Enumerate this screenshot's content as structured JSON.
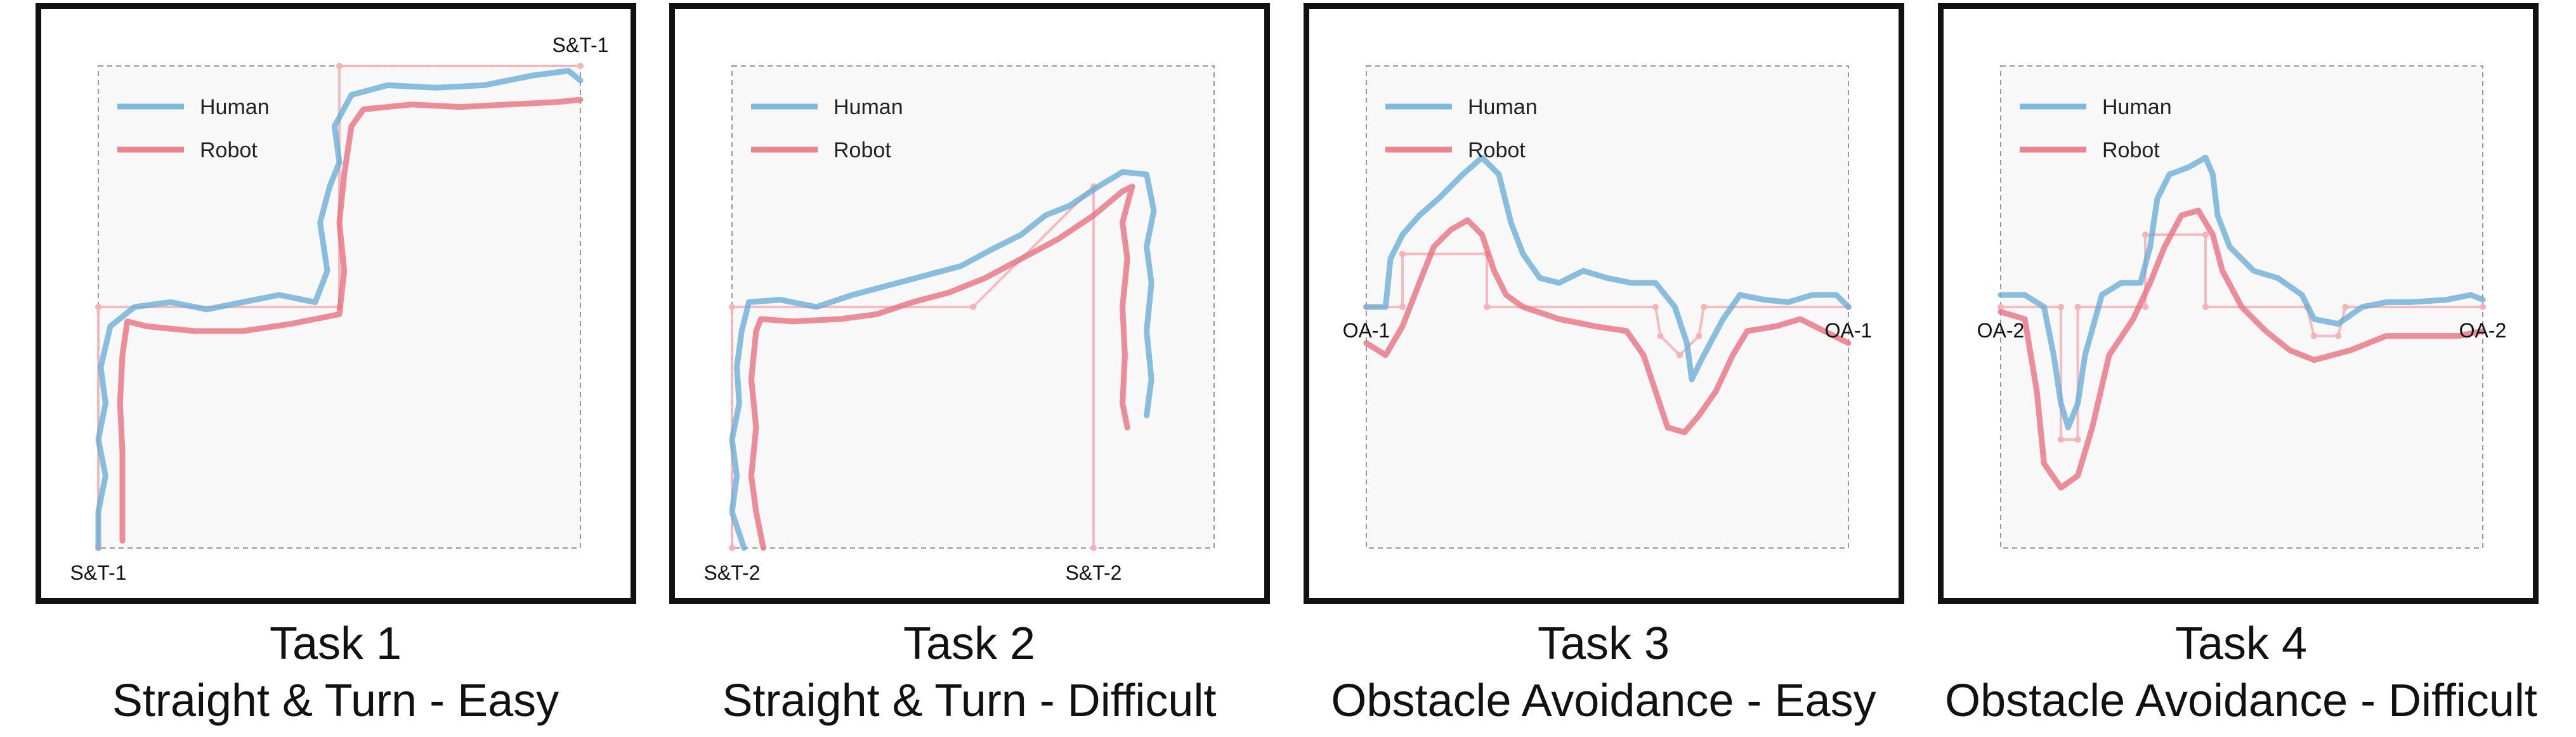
{
  "colors": {
    "human": "#6aaed6",
    "robot": "#e8707f",
    "reference": "#f5b3b8",
    "axes_box": "#999999",
    "plot_bg": "#f8f8f8"
  },
  "chart_data": [
    {
      "type": "line",
      "title": "Task 1",
      "subtitle": "Straight & Turn - Easy",
      "legend": [
        "Human",
        "Robot"
      ],
      "legend_position": "top-left",
      "start_label": "S&T-1",
      "end_label": "S&T-1",
      "series": [
        {
          "name": "Human",
          "points": [
            [
              -1.0,
              -1.0
            ],
            [
              -1.0,
              -0.85
            ],
            [
              -0.97,
              -0.7
            ],
            [
              -1.0,
              -0.55
            ],
            [
              -0.97,
              -0.4
            ],
            [
              -0.99,
              -0.25
            ],
            [
              -0.95,
              -0.08
            ],
            [
              -0.85,
              0.0
            ],
            [
              -0.7,
              0.02
            ],
            [
              -0.55,
              -0.01
            ],
            [
              -0.4,
              0.02
            ],
            [
              -0.25,
              0.05
            ],
            [
              -0.1,
              0.02
            ],
            [
              -0.05,
              0.15
            ],
            [
              -0.08,
              0.35
            ],
            [
              -0.04,
              0.5
            ],
            [
              0.0,
              0.6
            ],
            [
              -0.02,
              0.75
            ],
            [
              0.05,
              0.88
            ],
            [
              0.2,
              0.92
            ],
            [
              0.4,
              0.91
            ],
            [
              0.6,
              0.92
            ],
            [
              0.8,
              0.96
            ],
            [
              0.95,
              0.98
            ],
            [
              1.0,
              0.94
            ]
          ]
        },
        {
          "name": "Robot",
          "points": [
            [
              -0.9,
              -0.97
            ],
            [
              -0.9,
              -0.8
            ],
            [
              -0.9,
              -0.6
            ],
            [
              -0.91,
              -0.4
            ],
            [
              -0.9,
              -0.2
            ],
            [
              -0.88,
              -0.06
            ],
            [
              -0.8,
              -0.08
            ],
            [
              -0.6,
              -0.1
            ],
            [
              -0.4,
              -0.1
            ],
            [
              -0.2,
              -0.07
            ],
            [
              0.0,
              -0.03
            ],
            [
              0.02,
              0.15
            ],
            [
              0.0,
              0.35
            ],
            [
              0.02,
              0.55
            ],
            [
              0.05,
              0.75
            ],
            [
              0.1,
              0.82
            ],
            [
              0.3,
              0.84
            ],
            [
              0.5,
              0.83
            ],
            [
              0.7,
              0.84
            ],
            [
              0.9,
              0.85
            ],
            [
              1.0,
              0.86
            ]
          ]
        },
        {
          "name": "",
          "points": [
            [
              -1.0,
              -1.0
            ],
            [
              -1.0,
              0.0
            ],
            [
              0.0,
              0.0
            ],
            [
              0.0,
              1.0
            ],
            [
              1.0,
              1.0
            ]
          ]
        }
      ]
    },
    {
      "type": "line",
      "title": "Task 2",
      "subtitle": "Straight & Turn - Difficult",
      "legend": [
        "Human",
        "Robot"
      ],
      "legend_position": "top-left",
      "start_label": "S&T-2",
      "end_label": "S&T-2",
      "series": [
        {
          "name": "Human",
          "points": [
            [
              -0.95,
              -1.0
            ],
            [
              -1.0,
              -0.85
            ],
            [
              -0.98,
              -0.7
            ],
            [
              -1.0,
              -0.55
            ],
            [
              -0.97,
              -0.4
            ],
            [
              -0.98,
              -0.25
            ],
            [
              -0.96,
              -0.1
            ],
            [
              -0.93,
              0.02
            ],
            [
              -0.8,
              0.03
            ],
            [
              -0.65,
              0.0
            ],
            [
              -0.5,
              0.05
            ],
            [
              -0.35,
              0.09
            ],
            [
              -0.2,
              0.13
            ],
            [
              -0.05,
              0.17
            ],
            [
              0.08,
              0.24
            ],
            [
              0.2,
              0.3
            ],
            [
              0.3,
              0.38
            ],
            [
              0.4,
              0.42
            ],
            [
              0.52,
              0.5
            ],
            [
              0.62,
              0.56
            ],
            [
              0.72,
              0.55
            ],
            [
              0.75,
              0.4
            ],
            [
              0.72,
              0.25
            ],
            [
              0.74,
              0.1
            ],
            [
              0.72,
              -0.1
            ],
            [
              0.74,
              -0.3
            ],
            [
              0.72,
              -0.45
            ]
          ]
        },
        {
          "name": "Robot",
          "points": [
            [
              -0.87,
              -1.0
            ],
            [
              -0.9,
              -0.85
            ],
            [
              -0.92,
              -0.7
            ],
            [
              -0.9,
              -0.5
            ],
            [
              -0.92,
              -0.3
            ],
            [
              -0.9,
              -0.1
            ],
            [
              -0.88,
              -0.05
            ],
            [
              -0.75,
              -0.06
            ],
            [
              -0.55,
              -0.05
            ],
            [
              -0.4,
              -0.03
            ],
            [
              -0.25,
              0.02
            ],
            [
              -0.1,
              0.06
            ],
            [
              0.05,
              0.12
            ],
            [
              0.2,
              0.2
            ],
            [
              0.35,
              0.28
            ],
            [
              0.5,
              0.38
            ],
            [
              0.62,
              0.48
            ],
            [
              0.66,
              0.5
            ],
            [
              0.62,
              0.35
            ],
            [
              0.64,
              0.2
            ],
            [
              0.62,
              0.0
            ],
            [
              0.63,
              -0.2
            ],
            [
              0.62,
              -0.4
            ],
            [
              0.64,
              -0.5
            ]
          ]
        },
        {
          "name": "",
          "points": [
            [
              -1.0,
              -1.0
            ],
            [
              -1.0,
              0.0
            ],
            [
              0.0,
              0.0
            ],
            [
              0.5,
              0.5
            ],
            [
              0.5,
              -1.0
            ]
          ]
        }
      ]
    },
    {
      "type": "line",
      "title": "Task 3",
      "subtitle": "Obstacle Avoidance - Easy",
      "legend": [
        "Human",
        "Robot"
      ],
      "legend_position": "top-left",
      "start_label": "OA-1",
      "end_label": "OA-1",
      "series": [
        {
          "name": "Human",
          "points": [
            [
              -1.0,
              0.0
            ],
            [
              -0.92,
              0.0
            ],
            [
              -0.9,
              0.2
            ],
            [
              -0.85,
              0.3
            ],
            [
              -0.78,
              0.38
            ],
            [
              -0.7,
              0.45
            ],
            [
              -0.6,
              0.55
            ],
            [
              -0.52,
              0.62
            ],
            [
              -0.45,
              0.55
            ],
            [
              -0.4,
              0.35
            ],
            [
              -0.35,
              0.22
            ],
            [
              -0.28,
              0.12
            ],
            [
              -0.2,
              0.1
            ],
            [
              -0.1,
              0.15
            ],
            [
              0.0,
              0.12
            ],
            [
              0.1,
              0.1
            ],
            [
              0.2,
              0.1
            ],
            [
              0.28,
              0.0
            ],
            [
              0.33,
              -0.15
            ],
            [
              0.35,
              -0.3
            ],
            [
              0.4,
              -0.2
            ],
            [
              0.48,
              -0.05
            ],
            [
              0.55,
              0.05
            ],
            [
              0.65,
              0.03
            ],
            [
              0.75,
              0.02
            ],
            [
              0.85,
              0.05
            ],
            [
              0.95,
              0.05
            ],
            [
              1.0,
              0.0
            ]
          ]
        },
        {
          "name": "Robot",
          "points": [
            [
              -1.0,
              -0.15
            ],
            [
              -0.92,
              -0.2
            ],
            [
              -0.85,
              -0.08
            ],
            [
              -0.78,
              0.1
            ],
            [
              -0.72,
              0.25
            ],
            [
              -0.65,
              0.32
            ],
            [
              -0.58,
              0.36
            ],
            [
              -0.52,
              0.3
            ],
            [
              -0.47,
              0.15
            ],
            [
              -0.42,
              0.05
            ],
            [
              -0.35,
              0.0
            ],
            [
              -0.2,
              -0.05
            ],
            [
              -0.05,
              -0.08
            ],
            [
              0.08,
              -0.1
            ],
            [
              0.15,
              -0.2
            ],
            [
              0.2,
              -0.35
            ],
            [
              0.25,
              -0.5
            ],
            [
              0.32,
              -0.52
            ],
            [
              0.38,
              -0.45
            ],
            [
              0.45,
              -0.35
            ],
            [
              0.52,
              -0.2
            ],
            [
              0.58,
              -0.1
            ],
            [
              0.7,
              -0.08
            ],
            [
              0.8,
              -0.05
            ],
            [
              0.9,
              -0.1
            ],
            [
              1.0,
              -0.15
            ]
          ]
        },
        {
          "name": "",
          "points": [
            [
              -1.0,
              0.0
            ],
            [
              -0.85,
              0.0
            ],
            [
              -0.85,
              0.22
            ],
            [
              -0.5,
              0.22
            ],
            [
              -0.5,
              0.0
            ],
            [
              0.2,
              0.0
            ],
            [
              0.22,
              -0.12
            ],
            [
              0.3,
              -0.2
            ],
            [
              0.38,
              -0.12
            ],
            [
              0.4,
              0.0
            ],
            [
              1.0,
              0.0
            ]
          ]
        }
      ]
    },
    {
      "type": "line",
      "title": "Task 4",
      "subtitle": "Obstacle Avoidance - Difficult",
      "legend": [
        "Human",
        "Robot"
      ],
      "legend_position": "top-left",
      "start_label": "OA-2",
      "end_label": "OA-2",
      "series": [
        {
          "name": "Human",
          "points": [
            [
              -1.0,
              0.05
            ],
            [
              -0.9,
              0.05
            ],
            [
              -0.82,
              0.0
            ],
            [
              -0.78,
              -0.2
            ],
            [
              -0.75,
              -0.4
            ],
            [
              -0.72,
              -0.5
            ],
            [
              -0.68,
              -0.4
            ],
            [
              -0.65,
              -0.2
            ],
            [
              -0.58,
              0.05
            ],
            [
              -0.5,
              0.1
            ],
            [
              -0.42,
              0.1
            ],
            [
              -0.38,
              0.25
            ],
            [
              -0.35,
              0.45
            ],
            [
              -0.3,
              0.55
            ],
            [
              -0.22,
              0.58
            ],
            [
              -0.15,
              0.62
            ],
            [
              -0.12,
              0.55
            ],
            [
              -0.1,
              0.38
            ],
            [
              -0.05,
              0.25
            ],
            [
              0.05,
              0.15
            ],
            [
              0.15,
              0.12
            ],
            [
              0.25,
              0.05
            ],
            [
              0.3,
              -0.05
            ],
            [
              0.4,
              -0.07
            ],
            [
              0.5,
              0.0
            ],
            [
              0.6,
              0.02
            ],
            [
              0.7,
              0.02
            ],
            [
              0.85,
              0.03
            ],
            [
              0.95,
              0.05
            ],
            [
              1.0,
              0.03
            ]
          ]
        },
        {
          "name": "Robot",
          "points": [
            [
              -1.0,
              -0.02
            ],
            [
              -0.9,
              -0.05
            ],
            [
              -0.85,
              -0.35
            ],
            [
              -0.82,
              -0.65
            ],
            [
              -0.75,
              -0.75
            ],
            [
              -0.68,
              -0.7
            ],
            [
              -0.62,
              -0.5
            ],
            [
              -0.55,
              -0.2
            ],
            [
              -0.45,
              -0.05
            ],
            [
              -0.38,
              0.1
            ],
            [
              -0.32,
              0.25
            ],
            [
              -0.25,
              0.38
            ],
            [
              -0.18,
              0.4
            ],
            [
              -0.12,
              0.3
            ],
            [
              -0.08,
              0.15
            ],
            [
              0.0,
              0.0
            ],
            [
              0.1,
              -0.1
            ],
            [
              0.2,
              -0.18
            ],
            [
              0.3,
              -0.22
            ],
            [
              0.45,
              -0.18
            ],
            [
              0.6,
              -0.12
            ],
            [
              0.75,
              -0.12
            ],
            [
              0.9,
              -0.12
            ],
            [
              1.0,
              -0.1
            ]
          ]
        },
        {
          "name": "",
          "points": [
            [
              -1.0,
              0.0
            ],
            [
              -0.75,
              0.0
            ],
            [
              -0.75,
              -0.55
            ],
            [
              -0.68,
              -0.55
            ],
            [
              -0.68,
              0.0
            ],
            [
              -0.4,
              0.0
            ],
            [
              -0.4,
              0.3
            ],
            [
              -0.15,
              0.3
            ],
            [
              -0.15,
              0.0
            ],
            [
              0.27,
              0.0
            ],
            [
              0.3,
              -0.12
            ],
            [
              0.4,
              -0.12
            ],
            [
              0.43,
              0.0
            ],
            [
              1.0,
              0.0
            ]
          ]
        }
      ]
    }
  ]
}
